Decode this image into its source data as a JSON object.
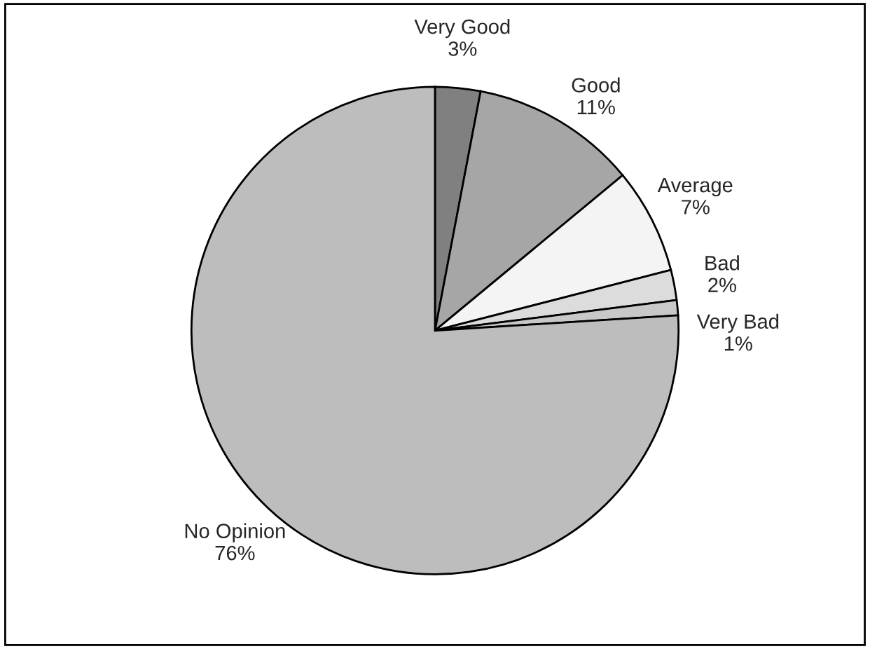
{
  "chart_data": {
    "type": "pie",
    "categories": [
      "Very Good",
      "Good",
      "Average",
      "Bad",
      "Very Bad",
      "No Opinion"
    ],
    "values": [
      3,
      11,
      7,
      2,
      1,
      76
    ],
    "value_labels": [
      "3%",
      "11%",
      "7%",
      "2%",
      "1%",
      "76%"
    ],
    "colors": [
      "#808080",
      "#a6a6a6",
      "#f4f4f4",
      "#dcdcdc",
      "#c8c8c8",
      "#bdbdbd"
    ]
  }
}
